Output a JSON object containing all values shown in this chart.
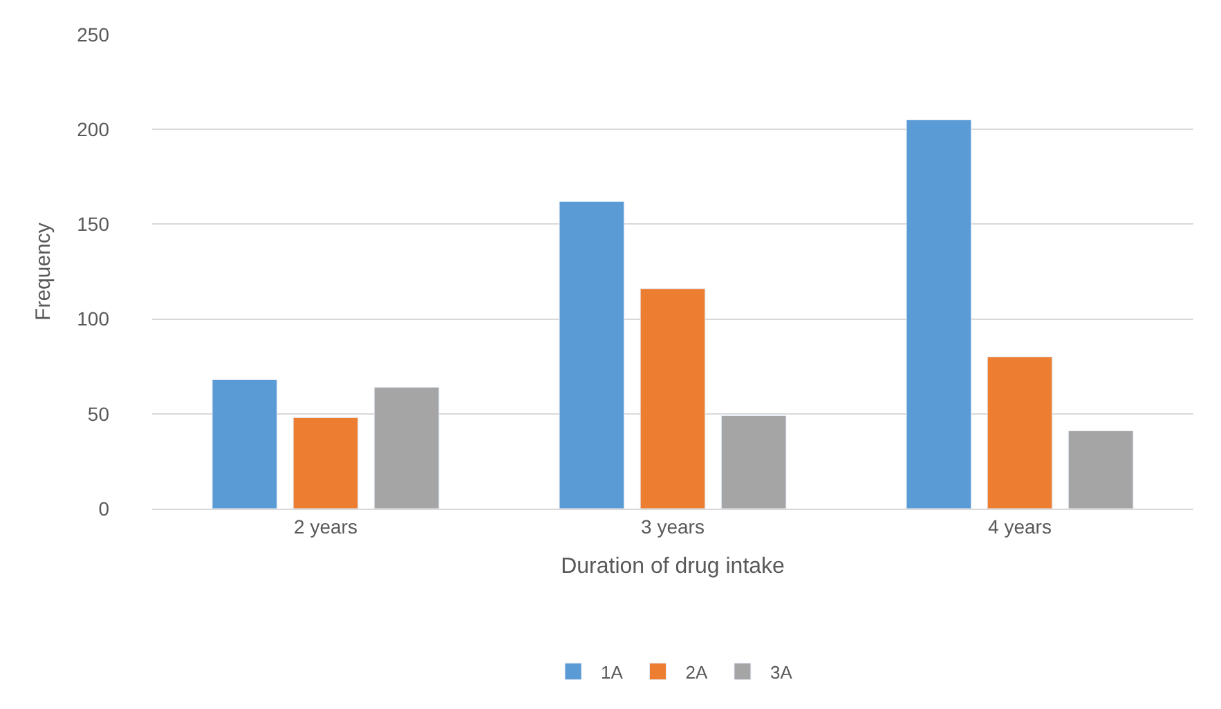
{
  "chart_data": {
    "type": "bar",
    "xlabel": "Duration of drug intake",
    "ylabel": "Frequency",
    "categories": [
      "2 years",
      "3 years",
      "4 years"
    ],
    "series": [
      {
        "name": "1A",
        "color": "#5b9bd5",
        "values": [
          68,
          162,
          205
        ]
      },
      {
        "name": "2A",
        "color": "#ed7d31",
        "values": [
          48,
          116,
          80
        ]
      },
      {
        "name": "3A",
        "color": "#a5a5a5",
        "values": [
          64,
          49,
          41
        ]
      }
    ],
    "ylim": [
      0,
      250
    ],
    "yticks": [
      0,
      50,
      100,
      150,
      200,
      250
    ],
    "grid": "y",
    "legend": "bottom"
  }
}
